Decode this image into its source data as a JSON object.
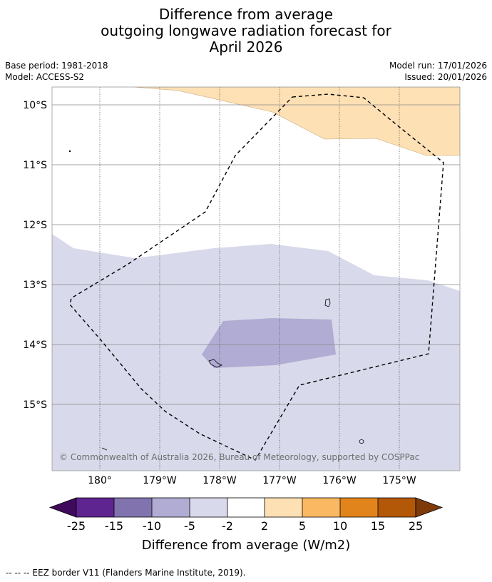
{
  "title": {
    "line1": "Difference from average",
    "line2": "outgoing longwave radiation forecast for",
    "line3": "April 2026"
  },
  "meta": {
    "base_period": "Base period: 1981-2018",
    "model": "Model: ACCESS-S2",
    "model_run": "Model run: 17/01/2026",
    "issued": "Issued: 20/01/2026"
  },
  "map": {
    "lat_labels": [
      "10°S",
      "11°S",
      "12°S",
      "13°S",
      "14°S",
      "15°S"
    ],
    "lon_labels": [
      "180°",
      "179°W",
      "178°W",
      "177°W",
      "176°W",
      "175°W"
    ],
    "copyright": "© Commonwealth of Australia 2026, Bureau of Meteorology, supported by COSPPac",
    "colors": {
      "anomaly_pos_2_5": "#fde0b4",
      "anomaly_neg_2_5": "#d8d9ea",
      "anomaly_neg_5_10": "#b1acd3",
      "eez_border": "#000000"
    }
  },
  "colorbar": {
    "ticks": [
      "-25",
      "-15",
      "-10",
      "-5",
      "-2",
      "2",
      "5",
      "10",
      "15",
      "25"
    ],
    "colors": [
      "#3f0a5c",
      "#5e2590",
      "#8073ae",
      "#b1acd3",
      "#d8d9ea",
      "#ffffff",
      "#fde0b4",
      "#fbb862",
      "#e1841b",
      "#b35806",
      "#7e3b09"
    ],
    "label": "Difference from average (W/m2)"
  },
  "footnote": "--  --  -- EEZ border V11 (Flanders Marine Institute, 2019)."
}
